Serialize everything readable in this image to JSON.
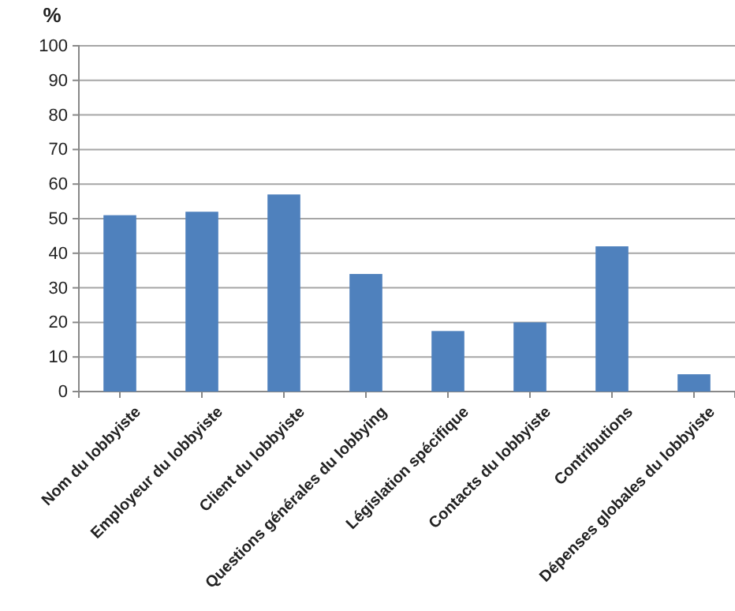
{
  "chart_data": {
    "type": "bar",
    "ylabel": "%",
    "categories": [
      "Nom du lobbyiste",
      "Employeur du lobbyiste",
      "Client du lobbyiste",
      "Questions générales du lobbying",
      "Législation spécifique",
      "Contacts du lobbyiste",
      "Contributions",
      "Dépenses globales du lobbyiste"
    ],
    "values": [
      51,
      52,
      57,
      34,
      17.5,
      20,
      42,
      5
    ],
    "color": "#4f81bd",
    "ylim": [
      0,
      100
    ],
    "yticks": [
      0,
      10,
      20,
      30,
      40,
      50,
      60,
      70,
      80,
      90,
      100
    ],
    "grid": true
  }
}
